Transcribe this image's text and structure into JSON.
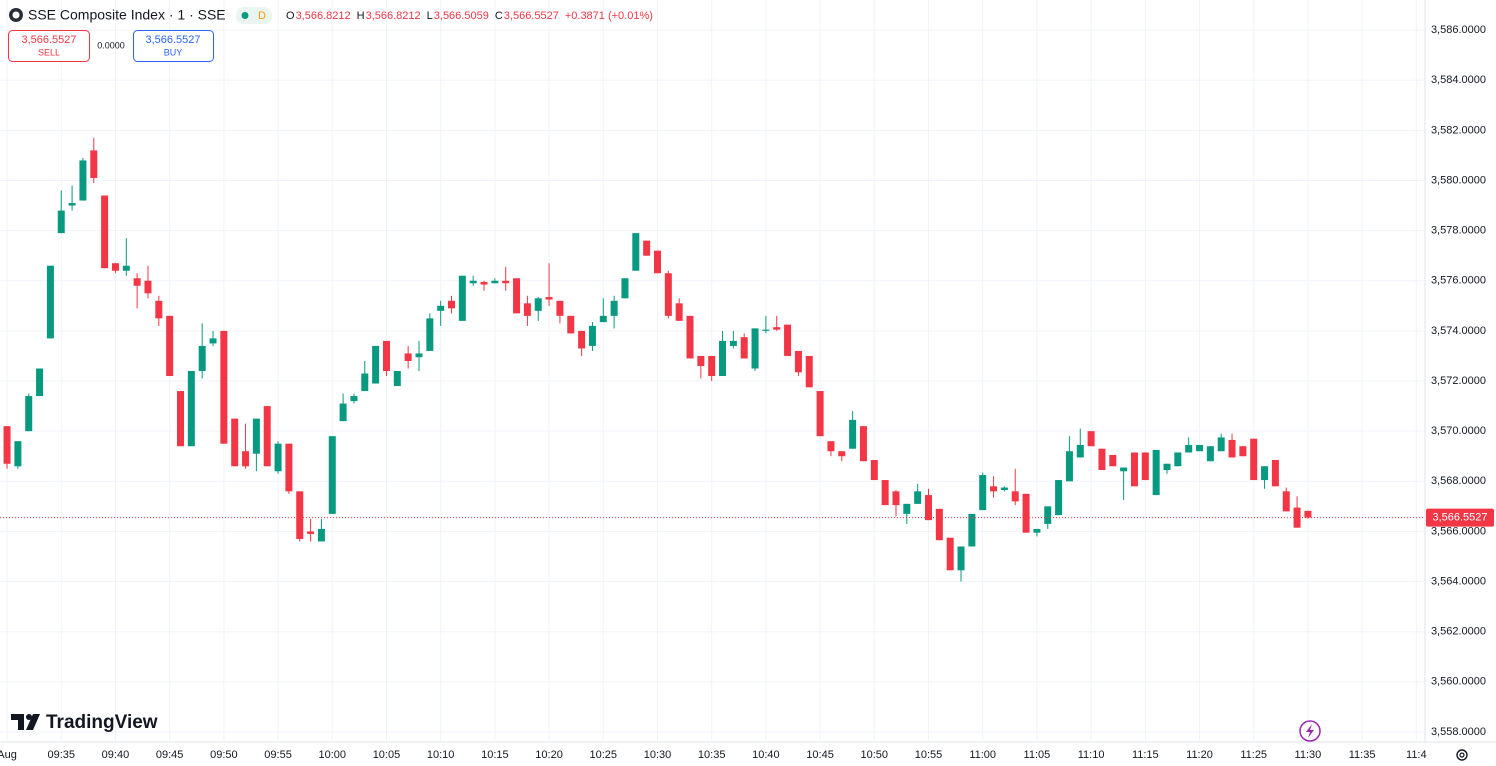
{
  "header": {
    "title": "SSE Composite Index · 1 · SSE",
    "badge": "D",
    "ohlc": [
      {
        "key": "O",
        "value": "3,566.8212"
      },
      {
        "key": "H",
        "value": "3,566.8212"
      },
      {
        "key": "L",
        "value": "3,566.5059"
      },
      {
        "key": "C",
        "value": "3,566.5527"
      }
    ],
    "change": "+0.3871 (+0.01%)",
    "sell": {
      "price": "3,566.5527",
      "label": "SELL"
    },
    "spread": "0.0000",
    "buy": {
      "price": "3,566.5527",
      "label": "BUY"
    }
  },
  "logo": "TradingView",
  "chart_data": {
    "type": "candlestick",
    "up_color": "#089981",
    "down_color": "#f23645",
    "open": [
      3570.2,
      3568.6,
      3570.0,
      3571.4,
      3573.7,
      3577.9,
      3579.0,
      3579.2,
      3581.2,
      3579.4,
      3576.7,
      3576.4,
      3576.1,
      3576.0,
      3575.2,
      3574.6,
      3571.6,
      3569.4,
      3572.4,
      3573.5,
      3574.0,
      3570.5,
      3569.2,
      3569.1,
      3571.0,
      3568.4,
      3569.5,
      3567.6,
      3566.0,
      3565.6,
      3566.7,
      3570.4,
      3571.2,
      3571.6,
      3571.9,
      3573.6,
      3571.8,
      3573.1,
      3572.95,
      3573.2,
      3574.8,
      3575.2,
      3574.4,
      3575.9,
      3575.95,
      3575.9,
      3576.0,
      3576.1,
      3575.1,
      3574.8,
      3575.35,
      3575.2,
      3574.6,
      3574.0,
      3573.4,
      3574.35,
      3574.6,
      3575.3,
      3576.4,
      3577.6,
      3577.2,
      3576.3,
      3575.1,
      3574.6,
      3573.0,
      3573.0,
      3572.2,
      3573.4,
      3573.75,
      3572.5,
      3574.0,
      3574.15,
      3574.25,
      3573.2,
      3573.0,
      3571.6,
      3569.6,
      3569.2,
      3569.3,
      3570.2,
      3568.85,
      3568.05,
      3567.6,
      3566.7,
      3567.1,
      3567.45,
      3566.9,
      3565.75,
      3564.45,
      3565.4,
      3566.85,
      3567.8,
      3567.65,
      3567.6,
      3567.5,
      3565.95,
      3566.3,
      3566.65,
      3568.0,
      3568.95,
      3570.0,
      3569.3,
      3569.05,
      3568.4,
      3569.15,
      3569.15,
      3567.45,
      3568.45,
      3568.6,
      3569.15,
      3569.2,
      3568.8,
      3569.2,
      3569.65,
      3569.4,
      3569.7,
      3568.05,
      3568.85,
      3567.6,
      3566.95,
      3566.8212
    ],
    "high": [
      3570.2,
      3569.6,
      3571.5,
      3572.5,
      3576.6,
      3579.6,
      3579.8,
      3580.9,
      3581.7,
      3579.4,
      3576.7,
      3577.7,
      3576.3,
      3576.6,
      3575.4,
      3574.6,
      3571.6,
      3572.4,
      3574.3,
      3574.0,
      3574.0,
      3570.5,
      3570.3,
      3570.5,
      3571.0,
      3569.6,
      3569.5,
      3567.6,
      3566.5,
      3566.5,
      3569.8,
      3571.5,
      3571.5,
      3572.8,
      3573.4,
      3573.6,
      3572.4,
      3573.4,
      3573.6,
      3574.7,
      3575.2,
      3575.4,
      3576.2,
      3576.2,
      3576.0,
      3576.1,
      3576.55,
      3576.1,
      3575.4,
      3575.35,
      3576.7,
      3575.2,
      3574.6,
      3574.0,
      3574.35,
      3575.3,
      3575.4,
      3576.1,
      3577.9,
      3577.6,
      3577.2,
      3576.4,
      3575.3,
      3574.6,
      3573.0,
      3573.0,
      3574.0,
      3574.0,
      3573.9,
      3574.1,
      3574.6,
      3574.6,
      3574.25,
      3573.2,
      3573.0,
      3571.6,
      3569.6,
      3569.2,
      3570.8,
      3570.2,
      3568.85,
      3568.05,
      3567.65,
      3567.1,
      3567.9,
      3567.7,
      3566.9,
      3565.75,
      3565.4,
      3566.7,
      3568.35,
      3568.2,
      3567.8,
      3568.5,
      3567.5,
      3566.1,
      3567.0,
      3568.05,
      3569.8,
      3570.1,
      3570.0,
      3569.3,
      3569.05,
      3568.55,
      3569.15,
      3569.15,
      3569.25,
      3568.7,
      3569.15,
      3569.75,
      3569.45,
      3569.4,
      3569.9,
      3569.9,
      3569.4,
      3569.7,
      3568.6,
      3568.85,
      3567.75,
      3567.4,
      3566.8212
    ],
    "low": [
      3568.5,
      3568.5,
      3570.0,
      3571.4,
      3573.7,
      3577.9,
      3578.8,
      3579.2,
      3579.9,
      3576.5,
      3576.3,
      3576.2,
      3574.9,
      3575.3,
      3574.2,
      3572.2,
      3569.4,
      3569.4,
      3572.1,
      3573.4,
      3569.5,
      3568.6,
      3568.5,
      3568.4,
      3568.6,
      3568.3,
      3567.5,
      3565.6,
      3565.6,
      3565.6,
      3566.7,
      3570.4,
      3571.1,
      3571.6,
      3571.9,
      3572.2,
      3571.8,
      3572.5,
      3572.4,
      3573.2,
      3574.2,
      3574.7,
      3574.4,
      3575.8,
      3575.6,
      3575.9,
      3575.6,
      3574.7,
      3574.2,
      3574.4,
      3575.0,
      3574.3,
      3573.9,
      3573.0,
      3573.2,
      3574.35,
      3574.1,
      3575.3,
      3576.4,
      3577.0,
      3576.3,
      3574.5,
      3574.4,
      3572.9,
      3572.1,
      3572.0,
      3572.2,
      3573.3,
      3572.9,
      3572.4,
      3573.9,
      3574.0,
      3573.0,
      3572.2,
      3571.75,
      3569.8,
      3569.0,
      3568.8,
      3569.3,
      3568.8,
      3568.05,
      3567.05,
      3566.6,
      3566.3,
      3567.1,
      3566.45,
      3565.65,
      3564.45,
      3564.0,
      3565.4,
      3566.85,
      3567.35,
      3567.6,
      3567.05,
      3565.95,
      3565.8,
      3566.1,
      3566.65,
      3568.0,
      3568.95,
      3569.4,
      3568.45,
      3568.6,
      3567.25,
      3567.8,
      3568.05,
      3567.45,
      3568.3,
      3568.6,
      3569.15,
      3569.2,
      3568.8,
      3569.2,
      3568.95,
      3569.0,
      3568.05,
      3567.7,
      3567.8,
      3566.8,
      3566.15,
      3566.5059
    ],
    "close": [
      3568.7,
      3569.6,
      3571.4,
      3572.5,
      3576.6,
      3578.8,
      3579.1,
      3580.8,
      3580.1,
      3576.5,
      3576.4,
      3576.6,
      3575.8,
      3575.5,
      3574.5,
      3572.2,
      3569.4,
      3572.4,
      3573.4,
      3573.7,
      3569.5,
      3568.6,
      3568.6,
      3570.5,
      3568.6,
      3569.5,
      3567.6,
      3565.7,
      3565.9,
      3566.1,
      3569.8,
      3571.1,
      3571.4,
      3572.3,
      3573.4,
      3572.4,
      3572.4,
      3572.8,
      3573.1,
      3574.5,
      3575.0,
      3574.9,
      3576.2,
      3576.0,
      3575.85,
      3576.0,
      3575.9,
      3574.7,
      3574.6,
      3575.3,
      3575.25,
      3574.6,
      3573.9,
      3573.3,
      3574.2,
      3574.6,
      3575.2,
      3576.1,
      3577.9,
      3577.0,
      3576.3,
      3574.6,
      3574.4,
      3572.9,
      3572.6,
      3572.2,
      3573.6,
      3573.6,
      3572.9,
      3574.1,
      3574.05,
      3574.05,
      3573.0,
      3572.35,
      3571.75,
      3569.8,
      3569.2,
      3569.0,
      3570.45,
      3568.8,
      3568.05,
      3567.05,
      3567.05,
      3567.1,
      3567.6,
      3566.45,
      3565.65,
      3564.45,
      3565.4,
      3566.7,
      3568.25,
      3567.6,
      3567.75,
      3567.2,
      3565.95,
      3566.1,
      3567.0,
      3568.05,
      3569.2,
      3569.45,
      3569.4,
      3568.45,
      3568.6,
      3568.55,
      3567.8,
      3568.05,
      3569.25,
      3568.7,
      3569.15,
      3569.45,
      3569.45,
      3569.4,
      3569.75,
      3568.95,
      3569.0,
      3568.05,
      3568.6,
      3567.8,
      3566.8,
      3566.15,
      3566.5527
    ],
    "last_price": {
      "value": 3566.5527,
      "label": "3,566.5527"
    },
    "ylim": [
      3557.6,
      3587.2
    ],
    "yticks": [
      {
        "value": 3558,
        "label": "3,558.0000"
      },
      {
        "value": 3560,
        "label": "3,560.0000"
      },
      {
        "value": 3562,
        "label": "3,562.0000"
      },
      {
        "value": 3564,
        "label": "3,564.0000"
      },
      {
        "value": 3566,
        "label": "3,566.0000"
      },
      {
        "value": 3568,
        "label": "3,568.0000"
      },
      {
        "value": 3570,
        "label": "3,570.0000"
      },
      {
        "value": 3572,
        "label": "3,572.0000"
      },
      {
        "value": 3574,
        "label": "3,574.0000"
      },
      {
        "value": 3576,
        "label": "3,576.0000"
      },
      {
        "value": 3578,
        "label": "3,578.0000"
      },
      {
        "value": 3580,
        "label": "3,580.0000"
      },
      {
        "value": 3582,
        "label": "3,582.0000"
      },
      {
        "value": 3584,
        "label": "3,584.0000"
      },
      {
        "value": 3586,
        "label": "3,586.0000"
      }
    ],
    "xlim": [
      -0.65,
      130.8
    ],
    "xticks": [
      {
        "value": 0,
        "label": "Aug"
      },
      {
        "value": 5,
        "label": "09:35"
      },
      {
        "value": 10,
        "label": "09:40"
      },
      {
        "value": 15,
        "label": "09:45"
      },
      {
        "value": 20,
        "label": "09:50"
      },
      {
        "value": 25,
        "label": "09:55"
      },
      {
        "value": 30,
        "label": "10:00"
      },
      {
        "value": 35,
        "label": "10:05"
      },
      {
        "value": 40,
        "label": "10:10"
      },
      {
        "value": 45,
        "label": "10:15"
      },
      {
        "value": 50,
        "label": "10:20"
      },
      {
        "value": 55,
        "label": "10:25"
      },
      {
        "value": 60,
        "label": "10:30"
      },
      {
        "value": 65,
        "label": "10:35"
      },
      {
        "value": 70,
        "label": "10:40"
      },
      {
        "value": 75,
        "label": "10:45"
      },
      {
        "value": 80,
        "label": "10:50"
      },
      {
        "value": 85,
        "label": "10:55"
      },
      {
        "value": 90,
        "label": "11:00"
      },
      {
        "value": 95,
        "label": "11:05"
      },
      {
        "value": 100,
        "label": "11:10"
      },
      {
        "value": 105,
        "label": "11:15"
      },
      {
        "value": 110,
        "label": "11:20"
      },
      {
        "value": 115,
        "label": "11:25"
      },
      {
        "value": 120,
        "label": "11:30"
      },
      {
        "value": 125,
        "label": "11:35"
      },
      {
        "value": 130,
        "label": "11:4"
      }
    ],
    "grid": true
  }
}
